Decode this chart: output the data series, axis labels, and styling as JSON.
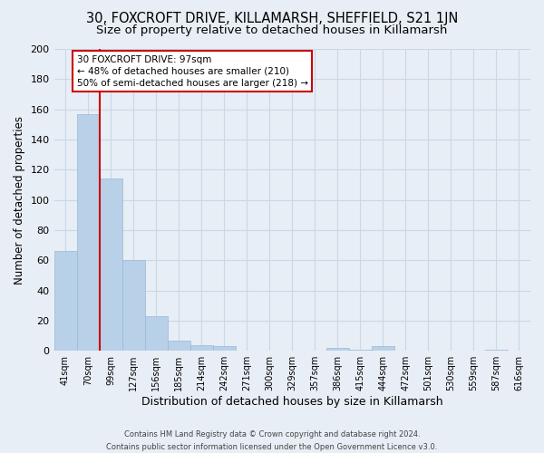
{
  "title1": "30, FOXCROFT DRIVE, KILLAMARSH, SHEFFIELD, S21 1JN",
  "title2": "Size of property relative to detached houses in Killamarsh",
  "xlabel": "Distribution of detached houses by size in Killamarsh",
  "ylabel": "Number of detached properties",
  "bar_labels": [
    "41sqm",
    "70sqm",
    "99sqm",
    "127sqm",
    "156sqm",
    "185sqm",
    "214sqm",
    "242sqm",
    "271sqm",
    "300sqm",
    "329sqm",
    "357sqm",
    "386sqm",
    "415sqm",
    "444sqm",
    "472sqm",
    "501sqm",
    "530sqm",
    "559sqm",
    "587sqm",
    "616sqm"
  ],
  "bar_values": [
    66,
    157,
    114,
    60,
    23,
    7,
    4,
    3,
    0,
    0,
    0,
    0,
    2,
    1,
    3,
    0,
    0,
    0,
    0,
    1,
    0
  ],
  "bar_color": "#b8d0e8",
  "bar_edge_color": "#9ab8d8",
  "highlight_line_color": "#cc0000",
  "ylim": [
    0,
    200
  ],
  "yticks": [
    0,
    20,
    40,
    60,
    80,
    100,
    120,
    140,
    160,
    180,
    200
  ],
  "annotation_line1": "30 FOXCROFT DRIVE: 97sqm",
  "annotation_line2": "← 48% of detached houses are smaller (210)",
  "annotation_line3": "50% of semi-detached houses are larger (218) →",
  "footer1": "Contains HM Land Registry data © Crown copyright and database right 2024.",
  "footer2": "Contains public sector information licensed under the Open Government Licence v3.0.",
  "bg_color": "#e8eef5",
  "grid_color": "#c8d8e8",
  "title1_fontsize": 10.5,
  "title2_fontsize": 9.5,
  "xlabel_fontsize": 9,
  "ylabel_fontsize": 8.5,
  "tick_fontsize": 8,
  "bar_tick_fontsize": 7
}
